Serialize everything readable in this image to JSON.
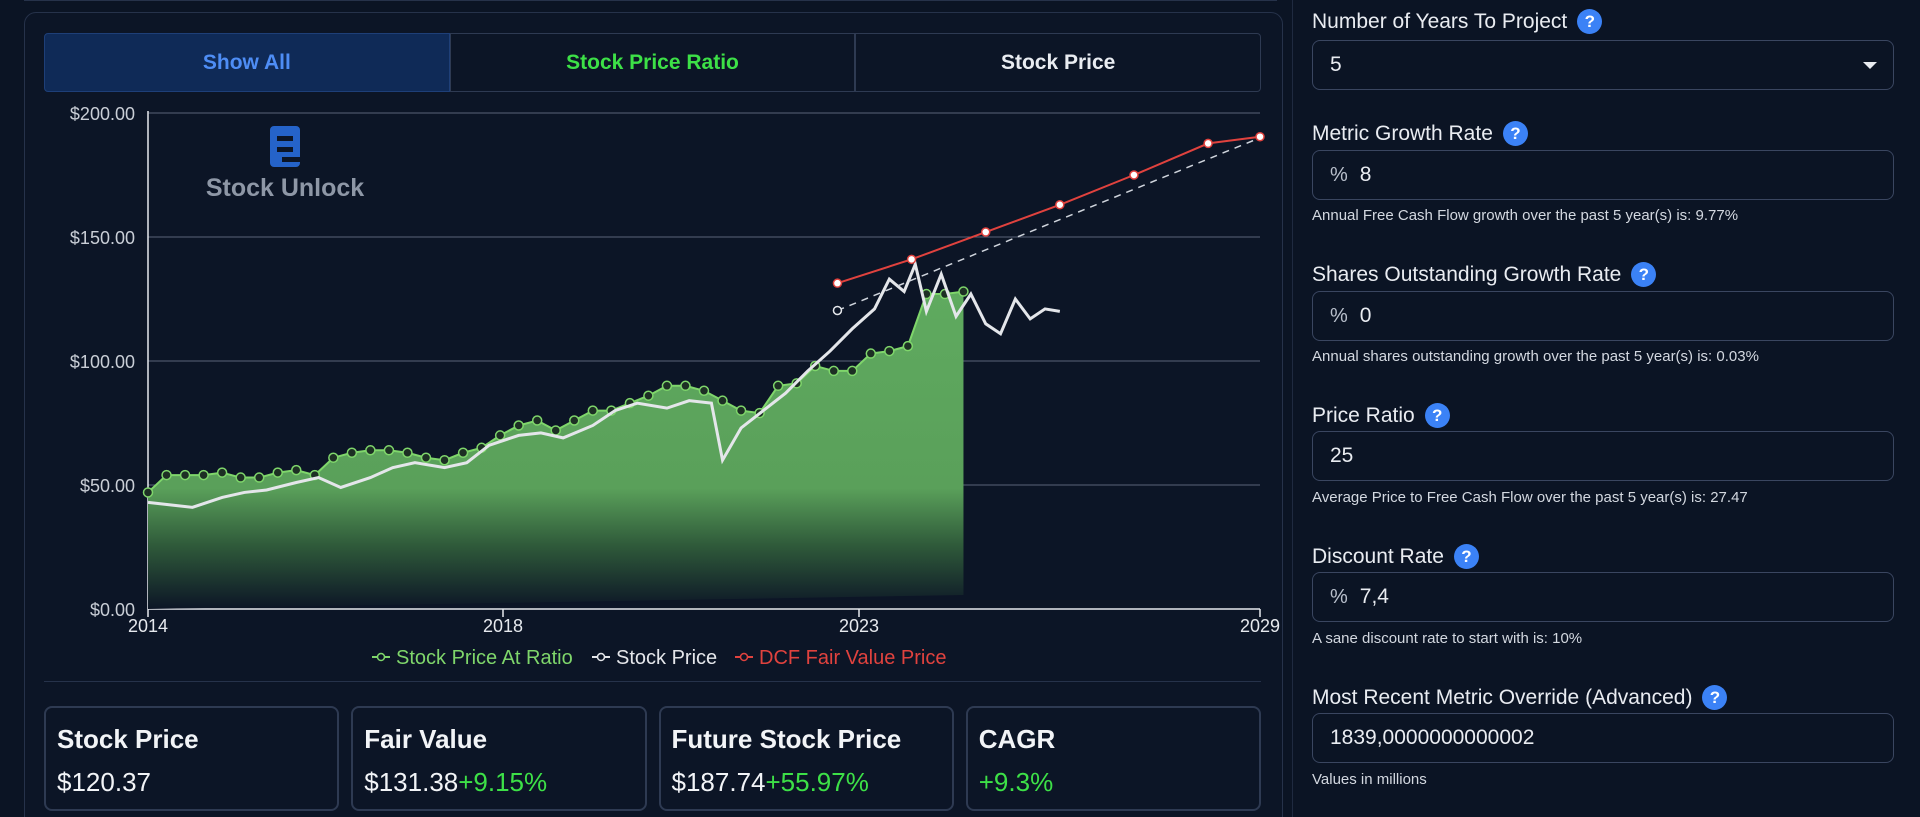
{
  "tabs": [
    {
      "label": "Show All"
    },
    {
      "label": "Stock Price Ratio"
    },
    {
      "label": "Stock Price"
    }
  ],
  "brand": {
    "name": "Stock Unlock"
  },
  "chart_data": {
    "type": "line",
    "x_ticks": [
      "2014",
      "2018",
      "2023",
      "2029"
    ],
    "y_ticks": [
      "$200.00",
      "$150.00",
      "$100.00",
      "$50.00",
      "$0.00"
    ],
    "ylim": [
      0,
      200
    ],
    "xlim": [
      2014,
      2029
    ],
    "grid": true,
    "legend_position": "bottom",
    "series": [
      {
        "name": "Stock Price At Ratio",
        "color": "#7fd66b",
        "points": [
          [
            2014.0,
            47
          ],
          [
            2014.25,
            54
          ],
          [
            2014.5,
            54
          ],
          [
            2014.75,
            54
          ],
          [
            2015.0,
            55
          ],
          [
            2015.25,
            53
          ],
          [
            2015.5,
            53
          ],
          [
            2015.75,
            55
          ],
          [
            2016.0,
            56
          ],
          [
            2016.25,
            54
          ],
          [
            2016.5,
            61
          ],
          [
            2016.75,
            63
          ],
          [
            2017.0,
            64
          ],
          [
            2017.25,
            64
          ],
          [
            2017.5,
            63
          ],
          [
            2017.75,
            61
          ],
          [
            2018.0,
            60
          ],
          [
            2018.25,
            63
          ],
          [
            2018.5,
            65
          ],
          [
            2018.75,
            70
          ],
          [
            2019.0,
            74
          ],
          [
            2019.25,
            76
          ],
          [
            2019.5,
            72
          ],
          [
            2019.75,
            76
          ],
          [
            2020.0,
            80
          ],
          [
            2020.25,
            80
          ],
          [
            2020.5,
            83
          ],
          [
            2020.75,
            86
          ],
          [
            2021.0,
            90
          ],
          [
            2021.25,
            90
          ],
          [
            2021.5,
            88
          ],
          [
            2021.75,
            84
          ],
          [
            2022.0,
            80
          ],
          [
            2022.25,
            79
          ],
          [
            2022.5,
            90
          ],
          [
            2022.75,
            91
          ],
          [
            2023.0,
            98
          ],
          [
            2023.25,
            96
          ],
          [
            2023.5,
            96
          ],
          [
            2023.75,
            103
          ],
          [
            2024.0,
            104
          ],
          [
            2024.25,
            106
          ],
          [
            2024.5,
            127
          ],
          [
            2024.75,
            127
          ],
          [
            2025.0,
            128
          ]
        ]
      },
      {
        "name": "Stock Price",
        "color": "#e4e6ea",
        "points": [
          [
            2014.0,
            43
          ],
          [
            2014.3,
            42
          ],
          [
            2014.6,
            41
          ],
          [
            2015.0,
            45
          ],
          [
            2015.3,
            47
          ],
          [
            2015.6,
            48
          ],
          [
            2016.0,
            51
          ],
          [
            2016.3,
            53
          ],
          [
            2016.6,
            49
          ],
          [
            2017.0,
            53
          ],
          [
            2017.3,
            57
          ],
          [
            2017.6,
            59
          ],
          [
            2018.0,
            57
          ],
          [
            2018.3,
            59
          ],
          [
            2018.6,
            66
          ],
          [
            2019.0,
            70
          ],
          [
            2019.3,
            71
          ],
          [
            2019.6,
            69
          ],
          [
            2020.0,
            74
          ],
          [
            2020.3,
            80
          ],
          [
            2020.6,
            83
          ],
          [
            2021.0,
            81
          ],
          [
            2021.3,
            84
          ],
          [
            2021.6,
            83
          ],
          [
            2021.75,
            60
          ],
          [
            2022.0,
            73
          ],
          [
            2022.3,
            80
          ],
          [
            2022.6,
            87
          ],
          [
            2022.9,
            96
          ],
          [
            2023.2,
            104
          ],
          [
            2023.5,
            113
          ],
          [
            2023.8,
            121
          ],
          [
            2024.0,
            133
          ],
          [
            2024.2,
            128
          ],
          [
            2024.35,
            139
          ],
          [
            2024.5,
            120
          ],
          [
            2024.7,
            135
          ],
          [
            2024.9,
            118
          ],
          [
            2025.1,
            127
          ],
          [
            2025.3,
            115
          ],
          [
            2025.5,
            111
          ],
          [
            2025.7,
            125
          ],
          [
            2025.9,
            117
          ],
          [
            2026.1,
            121
          ],
          [
            2026.3,
            120
          ]
        ]
      },
      {
        "name": "DCF Fair Value Price",
        "color": "#e0423e",
        "points": [
          [
            2023.3,
            131.38
          ],
          [
            2024.3,
            141
          ],
          [
            2025.3,
            152
          ],
          [
            2026.3,
            163
          ],
          [
            2027.3,
            175
          ],
          [
            2028.3,
            187.74
          ]
        ]
      }
    ],
    "projection_line": {
      "color": "#cfd4dc",
      "points": [
        [
          2023.3,
          120.37
        ],
        [
          2028.3,
          187.74
        ]
      ]
    }
  },
  "legend": [
    {
      "label": "Stock Price At Ratio",
      "color": "#7fd66b"
    },
    {
      "label": "Stock Price",
      "color": "#e4e6ea"
    },
    {
      "label": "DCF Fair Value Price",
      "color": "#e0423e"
    }
  ],
  "cards": [
    {
      "title": "Stock Price",
      "value": "$120.37",
      "change": ""
    },
    {
      "title": "Fair Value",
      "value": "$131.38",
      "change": "+9.15%"
    },
    {
      "title": "Future Stock Price",
      "value": "$187.74",
      "change": "+55.97%"
    },
    {
      "title": "CAGR",
      "value": "",
      "change": "+9.3%"
    }
  ],
  "form": {
    "years": {
      "label": "Number of Years To Project",
      "value": "5"
    },
    "metric_growth": {
      "label": "Metric Growth Rate",
      "prefix": "%",
      "value": "8",
      "hint": "Annual Free Cash Flow growth over the past 5 year(s) is: 9.77%"
    },
    "shares_growth": {
      "label": "Shares Outstanding Growth Rate",
      "prefix": "%",
      "value": "0",
      "hint": "Annual shares outstanding growth over the past 5 year(s) is: 0.03%"
    },
    "price_ratio": {
      "label": "Price Ratio",
      "value": "25",
      "hint": "Average Price to Free Cash Flow over the past 5 year(s) is: 27.47"
    },
    "discount_rate": {
      "label": "Discount Rate",
      "prefix": "%",
      "value": "7,4",
      "hint": "A sane discount rate to start with is: 10%"
    },
    "metric_override": {
      "label": "Most Recent Metric Override (Advanced)",
      "value": "1839,0000000000002",
      "hint": "Values in millions"
    }
  },
  "icons": {
    "help": "?"
  }
}
